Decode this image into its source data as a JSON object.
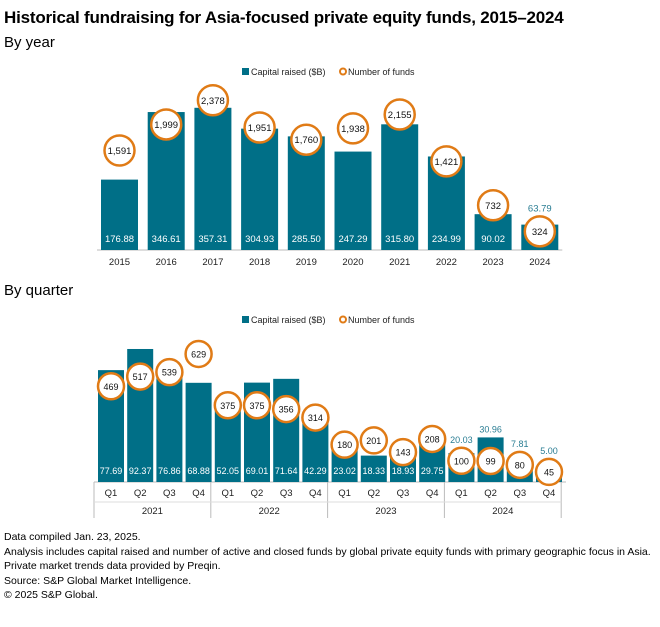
{
  "title": "Historical fundraising for Asia-focused private equity funds, 2015–2024",
  "colors": {
    "bar": "#006f87",
    "circle": "#e07b16",
    "label_outside": "#2a7d93"
  },
  "chart_data": [
    {
      "type": "bar",
      "subtitle": "By year",
      "legend": {
        "bar": "Capital raised ($B)",
        "circle": "Number of funds",
        "placement": "top-center"
      },
      "categories": [
        "2015",
        "2016",
        "2017",
        "2018",
        "2019",
        "2020",
        "2021",
        "2022",
        "2023",
        "2024"
      ],
      "series": [
        {
          "name": "Capital raised ($B)",
          "values": [
            176.88,
            346.61,
            357.31,
            304.93,
            285.5,
            247.29,
            315.8,
            234.99,
            90.02,
            63.79
          ],
          "labels": [
            "176.88",
            "346.61",
            "357.31",
            "304.93",
            "285.50",
            "247.29",
            "315.80",
            "234.99",
            "90.02",
            "63.79"
          ]
        },
        {
          "name": "Number of funds",
          "values": [
            1591,
            1999,
            2378,
            1951,
            1760,
            1938,
            2155,
            1421,
            732,
            324
          ],
          "labels": [
            "1,591",
            "1,999",
            "2,378",
            "1,951",
            "1,760",
            "1,938",
            "2,155",
            "1,421",
            "732",
            "324"
          ]
        }
      ]
    },
    {
      "type": "bar",
      "subtitle": "By quarter",
      "legend": {
        "bar": "Capital raised ($B)",
        "circle": "Number of funds",
        "placement": "top-center"
      },
      "categories": [
        "Q1",
        "Q2",
        "Q3",
        "Q4",
        "Q1",
        "Q2",
        "Q3",
        "Q4",
        "Q1",
        "Q2",
        "Q3",
        "Q4",
        "Q1",
        "Q2",
        "Q3",
        "Q4"
      ],
      "groups": [
        "2021",
        "2022",
        "2023",
        "2024"
      ],
      "series": [
        {
          "name": "Capital raised ($B)",
          "values": [
            77.69,
            92.37,
            76.86,
            68.88,
            52.05,
            69.01,
            71.64,
            42.29,
            23.02,
            18.33,
            18.93,
            29.75,
            20.03,
            30.96,
            7.81,
            5.0
          ],
          "labels": [
            "77.69",
            "92.37",
            "76.86",
            "68.88",
            "52.05",
            "69.01",
            "71.64",
            "42.29",
            "23.02",
            "18.33",
            "18.93",
            "29.75",
            "20.03",
            "30.96",
            "7.81",
            "5.00"
          ]
        },
        {
          "name": "Number of funds",
          "values": [
            469,
            517,
            539,
            629,
            375,
            375,
            356,
            314,
            180,
            201,
            143,
            208,
            100,
            99,
            80,
            45
          ],
          "labels": [
            "469",
            "517",
            "539",
            "629",
            "375",
            "375",
            "356",
            "314",
            "180",
            "201",
            "143",
            "208",
            "100",
            "99",
            "80",
            "45"
          ]
        }
      ]
    }
  ],
  "notes": [
    "Data compiled Jan. 23, 2025.",
    "Analysis includes capital raised and number of active and closed funds by global private equity funds with primary geographic focus in Asia.",
    "Private market trends data provided by Preqin.",
    "Source: S&P Global Market Intelligence.",
    "© 2025 S&P Global."
  ]
}
